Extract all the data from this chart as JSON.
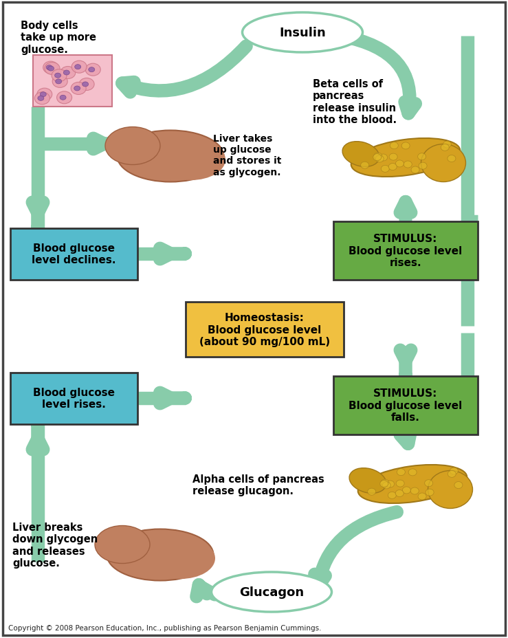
{
  "bg_color": "#ffffff",
  "arrow_color": "#88ccaa",
  "arrow_lw": 14,
  "cyan_box_color": "#55bbcc",
  "green_box_color": "#66aa44",
  "yellow_box_color": "#f0c040",
  "oval_fill": "#ffffff",
  "oval_border": "#88ccaa",
  "copyright_text": "Copyright © 2008 Pearson Education, Inc., publishing as Pearson Benjamin Cummings.",
  "insulin_label": "Insulin",
  "glucagon_label": "Glucagon",
  "body_cells_text": "Body cells\ntake up more\nglucose.",
  "liver_upper_text": "Liver takes\nup glucose\nand stores it\nas glycogen.",
  "beta_cells_text": "Beta cells of\npancreas\nrelease insulin\ninto the blood.",
  "stimulus_rise_text": "STIMULUS:\nBlood glucose level\nrises.",
  "homeostasis_text": "Homeostasis:\nBlood glucose level\n(about 90 mg/100 mL)",
  "stimulus_fall_text": "STIMULUS:\nBlood glucose level\nfalls.",
  "blood_glucose_declines_text": "Blood glucose\nlevel declines.",
  "blood_glucose_rises_text": "Blood glucose\nlevel rises.",
  "alpha_cells_text": "Alpha cells of pancreas\nrelease glucagon.",
  "liver_lower_text": "Liver breaks\ndown glycogen\nand releases\nglucose."
}
